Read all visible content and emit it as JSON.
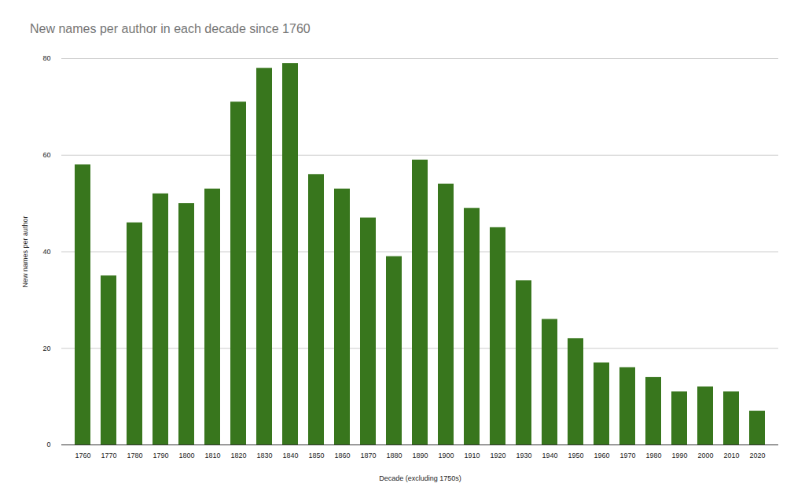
{
  "chart_data": {
    "type": "bar",
    "title": "New names per author in each decade since 1760",
    "x_label": "Decade (excluding 1750s)",
    "y_label": "New names per author",
    "categories": [
      "1760",
      "1770",
      "1780",
      "1790",
      "1800",
      "1810",
      "1820",
      "1830",
      "1840",
      "1850",
      "1860",
      "1870",
      "1880",
      "1890",
      "1900",
      "1910",
      "1920",
      "1930",
      "1940",
      "1950",
      "1960",
      "1970",
      "1980",
      "1990",
      "2000",
      "2010",
      "2020"
    ],
    "values": [
      58,
      35,
      46,
      52,
      50,
      53,
      71,
      78,
      79,
      56,
      53,
      47,
      39,
      59,
      54,
      49,
      45,
      34,
      26,
      22,
      17,
      16,
      14,
      11,
      12,
      11,
      7
    ],
    "color": "#38761d",
    "ylim": [
      0,
      80
    ],
    "yticks": [
      0,
      20,
      40,
      60,
      80
    ],
    "grid": true
  }
}
